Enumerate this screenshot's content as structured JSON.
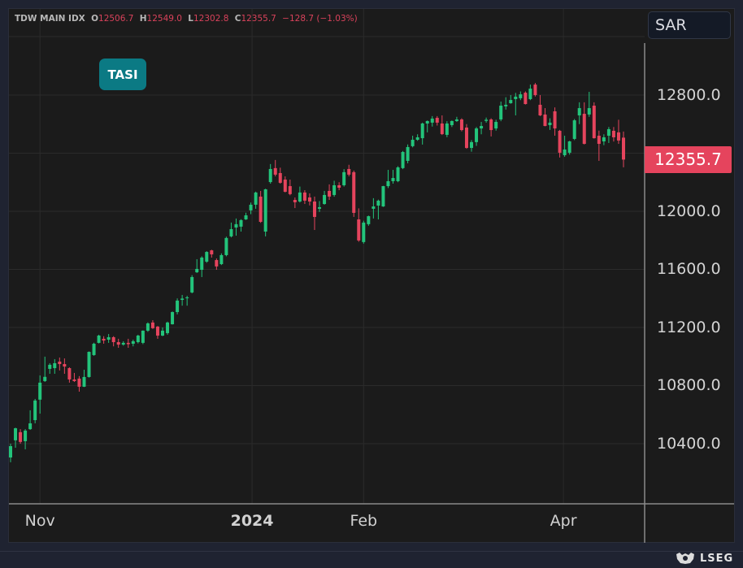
{
  "header": {
    "instrument": "TDW MAIN IDX",
    "open_label": "O",
    "open": "12506.7",
    "high_label": "H",
    "high": "12549.0",
    "low_label": "L",
    "low": "12302.8",
    "close_label": "C",
    "close": "12355.7",
    "change": "−128.7 (−1.03%)"
  },
  "badge": "TASI",
  "currency": "SAR",
  "last_price": "12355.7",
  "footer": {
    "brand": "LSEG"
  },
  "colors": {
    "up": "#23c47b",
    "down": "#e5445d",
    "background": "#1b1b1b",
    "grid": "#2b2b2b",
    "badge": "#0b7a84"
  },
  "chart_data": {
    "type": "candlestick",
    "title": "",
    "ylim": [
      9986,
      13197
    ],
    "grid": true,
    "y_gridlines": [
      10400,
      10800,
      11200,
      11600,
      12000,
      12400,
      12800
    ],
    "y_tick_labels": [
      {
        "value": 12800,
        "label": "12800.0"
      },
      {
        "value": 12000,
        "label": "12000.0"
      },
      {
        "value": 11600,
        "label": "11600.0"
      },
      {
        "value": 11200,
        "label": "11200.0"
      },
      {
        "value": 10800,
        "label": "10800.0"
      },
      {
        "value": 10400,
        "label": "10400.0"
      }
    ],
    "x_ticks": [
      {
        "label": "Nov",
        "at_candle": 6,
        "bold": false
      },
      {
        "label": "2024",
        "at_candle": 49.25,
        "bold": true
      },
      {
        "label": "Feb",
        "at_candle": 72,
        "bold": false
      },
      {
        "label": "Apr",
        "at_candle": 112.75,
        "bold": false
      }
    ],
    "ohlc_fields": [
      "open",
      "high",
      "low",
      "close"
    ],
    "ohlc": [
      [
        10305,
        10400,
        10272,
        10383
      ],
      [
        10423,
        10510,
        10372,
        10506
      ],
      [
        10479,
        10500,
        10400,
        10412
      ],
      [
        10417,
        10500,
        10361,
        10490
      ],
      [
        10500,
        10630,
        10495,
        10540
      ],
      [
        10562,
        10708,
        10540,
        10697
      ],
      [
        10703,
        10870,
        10607,
        10820
      ],
      [
        10831,
        10999,
        10825,
        10860
      ],
      [
        10915,
        10954,
        10881,
        10943
      ],
      [
        10920,
        10982,
        10881,
        10954
      ],
      [
        10965,
        10993,
        10904,
        10948
      ],
      [
        10948,
        10987,
        10881,
        10931
      ],
      [
        10920,
        10926,
        10820,
        10842
      ],
      [
        10842,
        10887,
        10825,
        10831
      ],
      [
        10848,
        10865,
        10758,
        10792
      ],
      [
        10792,
        10909,
        10790,
        10859
      ],
      [
        10859,
        11035,
        10855,
        11032
      ],
      [
        11010,
        11095,
        11005,
        11088
      ],
      [
        11094,
        11150,
        11090,
        11144
      ],
      [
        11122,
        11140,
        11088,
        11110
      ],
      [
        11116,
        11155,
        11094,
        11133
      ],
      [
        11133,
        11140,
        11070,
        11099
      ],
      [
        11099,
        11122,
        11060,
        11082
      ],
      [
        11082,
        11105,
        11075,
        11094
      ],
      [
        11094,
        11122,
        11060,
        11085
      ],
      [
        11088,
        11116,
        11070,
        11105
      ],
      [
        11099,
        11150,
        11090,
        11144
      ],
      [
        11094,
        11180,
        11085,
        11178
      ],
      [
        11178,
        11235,
        11170,
        11228
      ],
      [
        11234,
        11250,
        11190,
        11195
      ],
      [
        11206,
        11210,
        11122,
        11144
      ],
      [
        11144,
        11200,
        11140,
        11178
      ],
      [
        11161,
        11240,
        11150,
        11234
      ],
      [
        11222,
        11310,
        11220,
        11306
      ],
      [
        11306,
        11400,
        11290,
        11385
      ],
      [
        11390,
        11424,
        11350,
        11399
      ],
      [
        11402,
        11418,
        11350,
        11407
      ],
      [
        11441,
        11560,
        11435,
        11547
      ],
      [
        11580,
        11670,
        11575,
        11603
      ],
      [
        11597,
        11690,
        11547,
        11681
      ],
      [
        11653,
        11725,
        11645,
        11720
      ],
      [
        11731,
        11735,
        11681,
        11703
      ],
      [
        11664,
        11675,
        11597,
        11620
      ],
      [
        11636,
        11710,
        11630,
        11698
      ],
      [
        11698,
        11825,
        11690,
        11816
      ],
      [
        11827,
        11922,
        11820,
        11877
      ],
      [
        11888,
        11950,
        11832,
        11911
      ],
      [
        11894,
        11945,
        11860,
        11939
      ],
      [
        11944,
        11990,
        11940,
        11972
      ],
      [
        12006,
        12060,
        11980,
        12045
      ],
      [
        12045,
        12135,
        12017,
        12129
      ],
      [
        12101,
        12140,
        11920,
        11927
      ],
      [
        11860,
        12155,
        11827,
        12151
      ],
      [
        12201,
        12325,
        12190,
        12291
      ],
      [
        12297,
        12353,
        12240,
        12252
      ],
      [
        12263,
        12300,
        12190,
        12196
      ],
      [
        12218,
        12240,
        12130,
        12134
      ],
      [
        12173,
        12218,
        12110,
        12118
      ],
      [
        12078,
        12095,
        12022,
        12062
      ],
      [
        12067,
        12170,
        12060,
        12129
      ],
      [
        12129,
        12145,
        12050,
        12073
      ],
      [
        12095,
        12123,
        12040,
        12067
      ],
      [
        12067,
        12101,
        11871,
        11961
      ],
      [
        12017,
        12070,
        11995,
        12028
      ],
      [
        12050,
        12140,
        12045,
        12112
      ],
      [
        12140,
        12185,
        12078,
        12101
      ],
      [
        12112,
        12210,
        12100,
        12179
      ],
      [
        12179,
        12200,
        12145,
        12162
      ],
      [
        12179,
        12290,
        12170,
        12269
      ],
      [
        12291,
        12320,
        12240,
        12252
      ],
      [
        12269,
        12280,
        11961,
        11989
      ],
      [
        11944,
        12020,
        11790,
        11799
      ],
      [
        11788,
        11935,
        11777,
        11922
      ],
      [
        11911,
        11970,
        11900,
        11966
      ],
      [
        12017,
        12090,
        11950,
        12033
      ],
      [
        12039,
        12080,
        11944,
        12073
      ],
      [
        12033,
        12175,
        12030,
        12173
      ],
      [
        12173,
        12285,
        12160,
        12207
      ],
      [
        12207,
        12285,
        12190,
        12229
      ],
      [
        12207,
        12310,
        12200,
        12302
      ],
      [
        12297,
        12415,
        12290,
        12408
      ],
      [
        12347,
        12460,
        12330,
        12442
      ],
      [
        12448,
        12520,
        12440,
        12492
      ],
      [
        12492,
        12530,
        12485,
        12509
      ],
      [
        12503,
        12610,
        12459,
        12604
      ],
      [
        12604,
        12625,
        12543,
        12621
      ],
      [
        12610,
        12655,
        12583,
        12638
      ],
      [
        12643,
        12655,
        12590,
        12610
      ],
      [
        12604,
        12660,
        12525,
        12531
      ],
      [
        12526,
        12620,
        12510,
        12604
      ],
      [
        12593,
        12625,
        12580,
        12621
      ],
      [
        12621,
        12650,
        12615,
        12632
      ],
      [
        12632,
        12640,
        12550,
        12559
      ],
      [
        12576,
        12600,
        12430,
        12436
      ],
      [
        12436,
        12490,
        12410,
        12476
      ],
      [
        12476,
        12580,
        12450,
        12570
      ],
      [
        12570,
        12615,
        12530,
        12587
      ],
      [
        12622,
        12645,
        12610,
        12630
      ],
      [
        12632,
        12640,
        12515,
        12559
      ],
      [
        12570,
        12630,
        12555,
        12615
      ],
      [
        12632,
        12755,
        12620,
        12727
      ],
      [
        12722,
        12785,
        12700,
        12733
      ],
      [
        12744,
        12800,
        12740,
        12766
      ],
      [
        12772,
        12815,
        12660,
        12789
      ],
      [
        12778,
        12825,
        12765,
        12805
      ],
      [
        12816,
        12825,
        12735,
        12738
      ],
      [
        12772,
        12872,
        12765,
        12844
      ],
      [
        12872,
        12883,
        12790,
        12800
      ],
      [
        12733,
        12800,
        12655,
        12660
      ],
      [
        12666,
        12710,
        12585,
        12587
      ],
      [
        12593,
        12640,
        12560,
        12610
      ],
      [
        12688,
        12715,
        12520,
        12570
      ],
      [
        12554,
        12560,
        12370,
        12403
      ],
      [
        12386,
        12520,
        12375,
        12425
      ],
      [
        12403,
        12485,
        12390,
        12481
      ],
      [
        12498,
        12635,
        12490,
        12626
      ],
      [
        12660,
        12750,
        12600,
        12710
      ],
      [
        12671,
        12750,
        12460,
        12464
      ],
      [
        12666,
        12822,
        12650,
        12710
      ],
      [
        12727,
        12750,
        12500,
        12503
      ],
      [
        12520,
        12555,
        12347,
        12464
      ],
      [
        12481,
        12530,
        12455,
        12509
      ],
      [
        12520,
        12580,
        12470,
        12565
      ],
      [
        12554,
        12580,
        12480,
        12509
      ],
      [
        12543,
        12630,
        12464,
        12487
      ],
      [
        12506.7,
        12549.0,
        12302.8,
        12355.7
      ]
    ]
  }
}
